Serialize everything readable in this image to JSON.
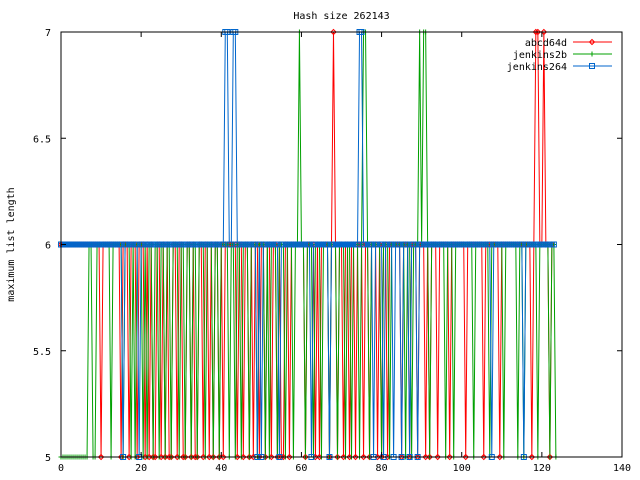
{
  "chart_data": {
    "type": "line",
    "title": "Hash size 262143",
    "xlabel": "",
    "ylabel": "maximum list length",
    "xlim": [
      0,
      140
    ],
    "ylim": [
      5,
      7
    ],
    "x_ticks": [
      0,
      20,
      40,
      60,
      80,
      100,
      120,
      140
    ],
    "y_ticks": [
      {
        "value": 5,
        "label": "5"
      },
      {
        "value": 5.5,
        "label": "5.5"
      },
      {
        "value": 6,
        "label": "6"
      },
      {
        "value": 6.5,
        "label": "6.5"
      },
      {
        "value": 7,
        "label": "7"
      }
    ],
    "grid": false,
    "legend_position": "top-right",
    "x_start": 0,
    "x_step": 0.5,
    "series": [
      {
        "name": "abcd64d",
        "color": "#ff0000",
        "marker": "diamond",
        "values": [
          6,
          6,
          6,
          6,
          6,
          6,
          6,
          6,
          6,
          6,
          6,
          6,
          6,
          6,
          6,
          6,
          6,
          6,
          6,
          6,
          5,
          6,
          6,
          6,
          6,
          6,
          6,
          6,
          6,
          6,
          5,
          6,
          6,
          6,
          5,
          6,
          6,
          6,
          5,
          6,
          6,
          6,
          5,
          6,
          5,
          6,
          5,
          5,
          6,
          6,
          5,
          6,
          5,
          6,
          5,
          5,
          6,
          6,
          5,
          6,
          6,
          5,
          5,
          6,
          6,
          5,
          6,
          5,
          5,
          6,
          6,
          5,
          6,
          6,
          5,
          6,
          5,
          6,
          6,
          5,
          6,
          5,
          6,
          6,
          6,
          6,
          6,
          6,
          5,
          6,
          6,
          5,
          6,
          6,
          5,
          6,
          5,
          6,
          6,
          5,
          6,
          6,
          5,
          6,
          6,
          5,
          6,
          6,
          5,
          6,
          5,
          5,
          6,
          6,
          5,
          6,
          6,
          6,
          6,
          6,
          6,
          6,
          5,
          6,
          6,
          6,
          6,
          5,
          6,
          5,
          6,
          6,
          6,
          6,
          5,
          6,
          7,
          6,
          5,
          6,
          6,
          5,
          6,
          6,
          5,
          6,
          6,
          5,
          6,
          6,
          6,
          5,
          6,
          6,
          5,
          6,
          6,
          6,
          5,
          6,
          5,
          6,
          6,
          5,
          6,
          6,
          6,
          6,
          6,
          6,
          5,
          6,
          6,
          6,
          5,
          6,
          6,
          6,
          5,
          6,
          6,
          6,
          5,
          6,
          5,
          6,
          6,
          6,
          5,
          6,
          6,
          6,
          6,
          6,
          5,
          6,
          6,
          6,
          6,
          6,
          6,
          6,
          5,
          6,
          6,
          6,
          6,
          6,
          6,
          6,
          6,
          5,
          6,
          6,
          6,
          6,
          6,
          6,
          6,
          5,
          6,
          6,
          6,
          6,
          6,
          6,
          6,
          6,
          6,
          6,
          6,
          6,
          6,
          6,
          6,
          5,
          6,
          7,
          7,
          6,
          6,
          7,
          6,
          6,
          5,
          6
        ]
      },
      {
        "name": "jenkins2b",
        "color": "#00a000",
        "marker": "plus",
        "values": [
          5,
          5,
          5,
          5,
          5,
          5,
          5,
          5,
          5,
          5,
          5,
          5,
          5,
          5,
          6,
          6,
          5,
          5,
          6,
          6,
          6,
          6,
          6,
          6,
          6,
          5,
          6,
          6,
          6,
          6,
          6,
          5,
          6,
          6,
          6,
          5,
          6,
          5,
          6,
          6,
          6,
          5,
          6,
          5,
          6,
          6,
          5,
          6,
          6,
          5,
          6,
          6,
          5,
          6,
          6,
          5,
          6,
          6,
          6,
          5,
          6,
          6,
          5,
          6,
          6,
          5,
          6,
          6,
          5,
          6,
          6,
          6,
          5,
          6,
          6,
          6,
          5,
          6,
          6,
          5,
          6,
          6,
          6,
          6,
          5,
          6,
          6,
          5,
          6,
          6,
          5,
          6,
          6,
          6,
          5,
          6,
          6,
          6,
          5,
          6,
          6,
          6,
          5,
          6,
          5,
          6,
          6,
          6,
          5,
          6,
          6,
          6,
          5,
          6,
          6,
          6,
          5,
          6,
          6,
          7,
          6,
          6,
          5,
          6,
          6,
          6,
          5,
          6,
          6,
          6,
          5,
          6,
          6,
          6,
          5,
          6,
          6,
          6,
          5,
          6,
          6,
          6,
          5,
          6,
          6,
          5,
          6,
          6,
          6,
          5,
          6,
          7,
          7,
          6,
          5,
          6,
          6,
          6,
          6,
          6,
          5,
          6,
          6,
          6,
          5,
          6,
          6,
          6,
          6,
          6,
          6,
          6,
          5,
          6,
          6,
          5,
          6,
          6,
          6,
          7,
          6,
          7,
          7,
          6,
          5,
          6,
          6,
          6,
          6,
          6,
          6,
          6,
          5,
          6,
          6,
          6,
          5,
          6,
          6,
          6,
          6,
          6,
          6,
          6,
          6,
          6,
          5,
          6,
          6,
          6,
          6,
          6,
          6,
          6,
          5,
          6,
          6,
          6,
          6,
          6,
          6,
          5,
          6,
          6,
          6,
          6,
          6,
          6,
          5,
          6,
          6,
          5,
          6,
          6,
          6,
          6,
          6,
          6,
          5,
          6,
          6,
          6,
          6,
          6,
          5,
          6,
          6,
          5
        ]
      },
      {
        "name": "jenkins264",
        "color": "#0066cc",
        "marker": "square",
        "values": [
          6,
          6,
          6,
          6,
          6,
          6,
          6,
          6,
          6,
          6,
          6,
          6,
          6,
          6,
          6,
          6,
          6,
          6,
          6,
          6,
          6,
          6,
          6,
          6,
          6,
          6,
          6,
          6,
          6,
          6,
          6,
          5,
          6,
          6,
          6,
          6,
          6,
          6,
          6,
          5,
          6,
          6,
          6,
          6,
          6,
          6,
          6,
          6,
          6,
          6,
          6,
          6,
          6,
          6,
          6,
          6,
          6,
          6,
          6,
          6,
          6,
          6,
          6,
          6,
          6,
          6,
          6,
          6,
          6,
          6,
          6,
          6,
          6,
          6,
          6,
          6,
          6,
          6,
          6,
          6,
          6,
          6,
          7,
          7,
          6,
          6,
          7,
          7,
          6,
          6,
          6,
          6,
          6,
          6,
          6,
          6,
          6,
          6,
          5,
          6,
          5,
          6,
          6,
          6,
          6,
          6,
          6,
          6,
          6,
          5,
          6,
          6,
          6,
          6,
          6,
          6,
          6,
          6,
          6,
          6,
          6,
          6,
          6,
          6,
          6,
          5,
          6,
          6,
          6,
          6,
          6,
          6,
          6,
          6,
          5,
          6,
          6,
          6,
          6,
          6,
          6,
          6,
          6,
          6,
          6,
          6,
          6,
          6,
          6,
          7,
          7,
          6,
          6,
          6,
          6,
          6,
          5,
          6,
          6,
          6,
          6,
          5,
          6,
          6,
          6,
          6,
          5,
          6,
          6,
          6,
          5,
          6,
          6,
          6,
          5,
          6,
          6,
          6,
          5,
          6,
          6,
          6,
          6,
          6,
          6,
          6,
          6,
          6,
          6,
          6,
          6,
          6,
          6,
          6,
          6,
          6,
          6,
          6,
          6,
          6,
          6,
          6,
          6,
          6,
          6,
          6,
          6,
          6,
          6,
          6,
          6,
          6,
          6,
          6,
          6,
          5,
          6,
          6,
          6,
          6,
          6,
          6,
          6,
          6,
          6,
          6,
          6,
          6,
          6,
          6,
          6,
          5,
          6,
          6,
          6,
          6,
          6,
          6,
          6,
          6,
          6,
          6,
          6,
          6,
          6,
          6,
          6
        ]
      }
    ]
  }
}
